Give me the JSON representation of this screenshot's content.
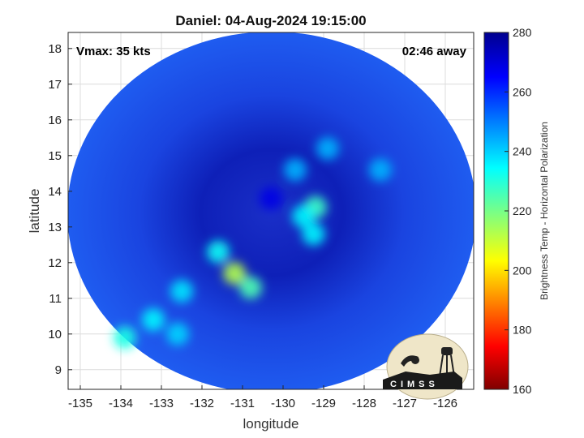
{
  "chart_data": {
    "type": "heatmap",
    "title": "Daniel: 04-Aug-2024 19:15:00",
    "xlabel": "longitude",
    "ylabel": "latitude",
    "x_ticks": [
      "-135",
      "-134",
      "-133",
      "-132",
      "-131",
      "-130",
      "-129",
      "-128",
      "-127",
      "-126"
    ],
    "y_ticks": [
      "9",
      "10",
      "11",
      "12",
      "13",
      "14",
      "15",
      "16",
      "17",
      "18"
    ],
    "xlim": [
      -135.3,
      -125.3
    ],
    "ylim": [
      8.45,
      18.45
    ],
    "grid": true,
    "annotations": {
      "vmax": "Vmax: 35 kts",
      "time_away": "02:46 away"
    },
    "colorbar": {
      "label": "Brightness Temp - Horizontal Polarization",
      "range": [
        160,
        280
      ],
      "ticks": [
        "160",
        "180",
        "200",
        "220",
        "240",
        "260",
        "280"
      ],
      "colormap": "jet"
    },
    "swath": {
      "center": [
        -130.3,
        13.45
      ],
      "background_temp": 262,
      "features": [
        {
          "lon": -130.3,
          "lat": 13.8,
          "temp": 268
        },
        {
          "lon": -129.2,
          "lat": 13.55,
          "temp": 228
        },
        {
          "lon": -129.5,
          "lat": 13.3,
          "temp": 236
        },
        {
          "lon": -129.25,
          "lat": 12.8,
          "temp": 236
        },
        {
          "lon": -129.7,
          "lat": 14.6,
          "temp": 244
        },
        {
          "lon": -128.9,
          "lat": 15.2,
          "temp": 244
        },
        {
          "lon": -127.6,
          "lat": 14.6,
          "temp": 244
        },
        {
          "lon": -131.6,
          "lat": 12.3,
          "temp": 234
        },
        {
          "lon": -131.2,
          "lat": 11.7,
          "temp": 214
        },
        {
          "lon": -130.8,
          "lat": 11.3,
          "temp": 226
        },
        {
          "lon": -132.5,
          "lat": 11.2,
          "temp": 238
        },
        {
          "lon": -133.2,
          "lat": 10.4,
          "temp": 236
        },
        {
          "lon": -133.9,
          "lat": 9.9,
          "temp": 232
        },
        {
          "lon": -132.6,
          "lat": 10.0,
          "temp": 240
        }
      ]
    }
  },
  "logo": {
    "text": "CIMSS"
  }
}
